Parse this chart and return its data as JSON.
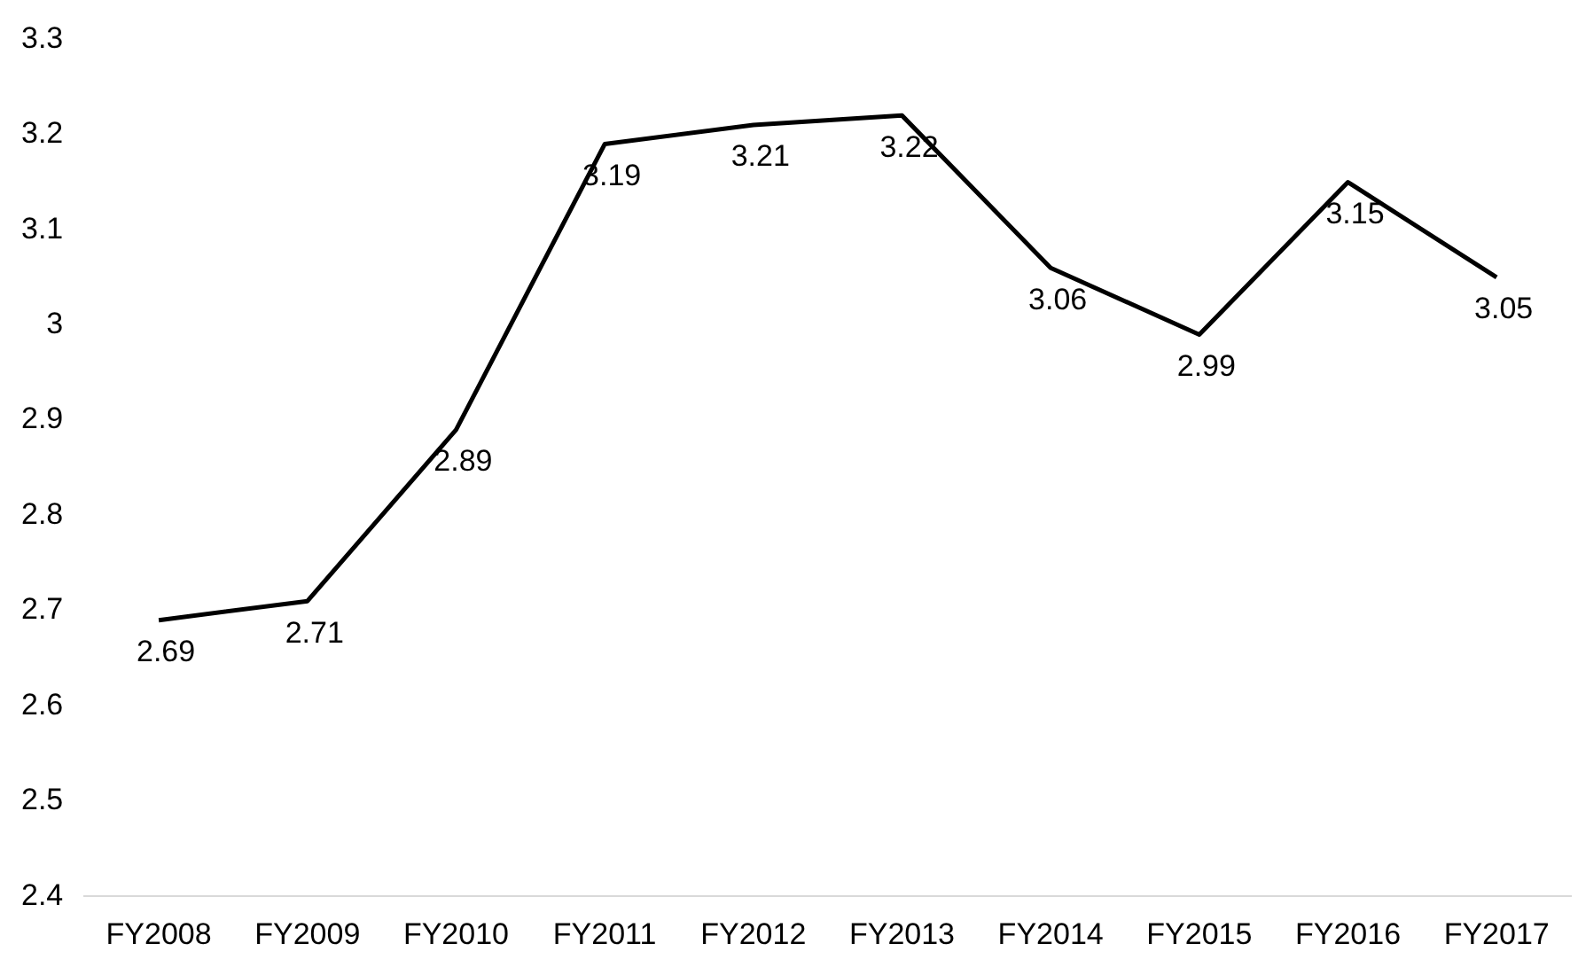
{
  "chart_data": {
    "type": "line",
    "categories": [
      "FY2008",
      "FY2009",
      "FY2010",
      "FY2011",
      "FY2012",
      "FY2013",
      "FY2014",
      "FY2015",
      "FY2016",
      "FY2017"
    ],
    "series": [
      {
        "color": "#000000",
        "values": [
          2.69,
          2.71,
          2.89,
          3.19,
          3.21,
          3.22,
          3.06,
          2.99,
          3.15,
          3.05
        ]
      }
    ],
    "ylim": [
      2.4,
      3.3
    ],
    "yticks": [
      2.4,
      2.5,
      2.6,
      2.7,
      2.8,
      2.9,
      3,
      3.1,
      3.2,
      3.3
    ],
    "grid": false,
    "legend": false,
    "marker": "none",
    "line_style": "solid",
    "data_labels": true
  }
}
